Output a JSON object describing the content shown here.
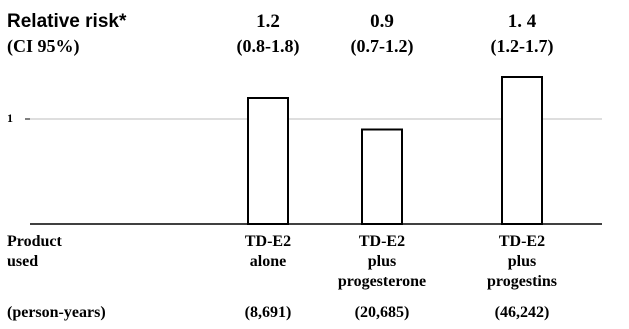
{
  "header": {
    "rr_label": "Relative risk*",
    "ci_label": "(CI 95%)"
  },
  "product_label": [
    "Product",
    "used"
  ],
  "person_years_label": "(person-years)",
  "reference_tick": "1",
  "colors": {
    "bar_fill": "#ffffff",
    "bar_stroke": "#000000",
    "ref_line": "#bdbdbd",
    "axis": "#000000"
  },
  "chart_data": {
    "type": "bar",
    "categories": [
      "TD-E2 alone",
      "TD-E2 plus progesterone",
      "TD-E2 plus progestins"
    ],
    "values": [
      1.2,
      0.9,
      1.4
    ],
    "value_labels": [
      "1.2",
      "0.9",
      "1. 4"
    ],
    "ci_labels": [
      "(0.8-1.8)",
      "(0.7-1.2)",
      "(1.2-1.7)"
    ],
    "category_lines": [
      [
        "TD-E2",
        "alone"
      ],
      [
        "TD-E2",
        "plus",
        "progesterone"
      ],
      [
        "TD-E2",
        "plus",
        "progestins"
      ]
    ],
    "person_years": [
      "(8,691)",
      "(20,685)",
      "(46,242)"
    ],
    "reference_line": 1,
    "grid": false
  }
}
